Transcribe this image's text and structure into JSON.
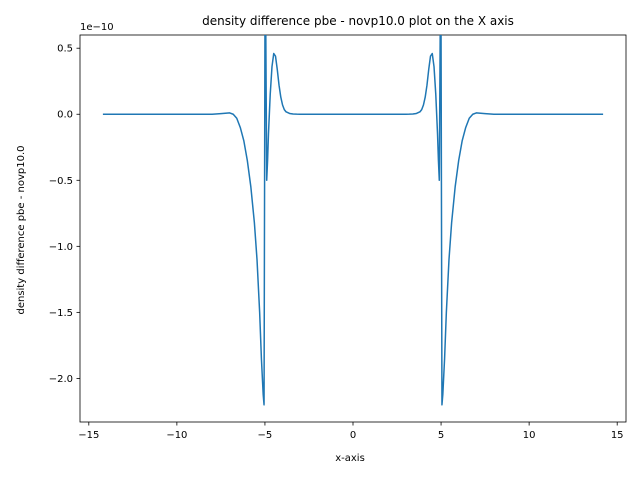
{
  "chart_data": {
    "type": "line",
    "title": "density difference pbe - novp10.0 plot on the X axis",
    "xlabel": "x-axis",
    "ylabel": "density difference pbe - novp10.0",
    "offset_text": "1e−10",
    "xlim": [
      -15.5,
      15.5
    ],
    "ylim": [
      -2.33,
      0.6
    ],
    "x_ticks": [
      -15,
      -10,
      -5,
      0,
      5,
      10,
      15
    ],
    "x_tick_labels": [
      "−15",
      "−10",
      "−5",
      "0",
      "5",
      "10",
      "15"
    ],
    "y_ticks": [
      0.5,
      0.0,
      -0.5,
      -1.0,
      -1.5,
      -2.0
    ],
    "y_tick_labels": [
      "0.5",
      "0.0",
      "−0.5",
      "−1.0",
      "−1.5",
      "−2.0"
    ],
    "grid": false,
    "series": [
      {
        "color": "#1f77b4",
        "x": [
          -14.2,
          -10.0,
          -8.0,
          -7.5,
          -7.0,
          -6.8,
          -6.6,
          -6.4,
          -6.2,
          -6.0,
          -5.8,
          -5.6,
          -5.45,
          -5.3,
          -5.2,
          -5.1,
          -5.05,
          -5.0,
          -4.95,
          -4.9,
          -4.85,
          -4.8,
          -4.7,
          -4.6,
          -4.5,
          -4.4,
          -4.3,
          -4.2,
          -4.1,
          -4.0,
          -3.9,
          -3.8,
          -3.6,
          -3.4,
          -3.2,
          -3.0,
          -2.0,
          0.0,
          2.0,
          3.0,
          3.2,
          3.4,
          3.6,
          3.8,
          3.9,
          4.0,
          4.1,
          4.2,
          4.3,
          4.4,
          4.5,
          4.6,
          4.7,
          4.8,
          4.85,
          4.9,
          4.95,
          5.0,
          5.05,
          5.1,
          5.2,
          5.3,
          5.45,
          5.6,
          5.8,
          6.0,
          6.2,
          6.4,
          6.6,
          6.8,
          7.0,
          7.5,
          8.0,
          10.0,
          14.2
        ],
        "y": [
          0.0,
          0.0,
          0.0,
          0.005,
          0.01,
          0.0,
          -0.03,
          -0.1,
          -0.2,
          -0.35,
          -0.55,
          -0.82,
          -1.1,
          -1.5,
          -1.85,
          -2.12,
          -2.2,
          0.6,
          0.6,
          -0.5,
          -0.35,
          -0.15,
          0.15,
          0.36,
          0.46,
          0.44,
          0.34,
          0.22,
          0.13,
          0.07,
          0.035,
          0.018,
          0.006,
          0.002,
          0.0005,
          0.0,
          0.0,
          0.0,
          0.0,
          0.0,
          0.0005,
          0.002,
          0.006,
          0.018,
          0.035,
          0.07,
          0.13,
          0.22,
          0.34,
          0.44,
          0.46,
          0.36,
          0.15,
          -0.15,
          -0.35,
          -0.5,
          0.6,
          0.6,
          -2.2,
          -2.12,
          -1.85,
          -1.5,
          -1.1,
          -0.82,
          -0.55,
          -0.35,
          -0.2,
          -0.1,
          -0.03,
          0.0,
          0.01,
          0.005,
          0.0,
          0.0,
          0.0
        ]
      }
    ]
  }
}
